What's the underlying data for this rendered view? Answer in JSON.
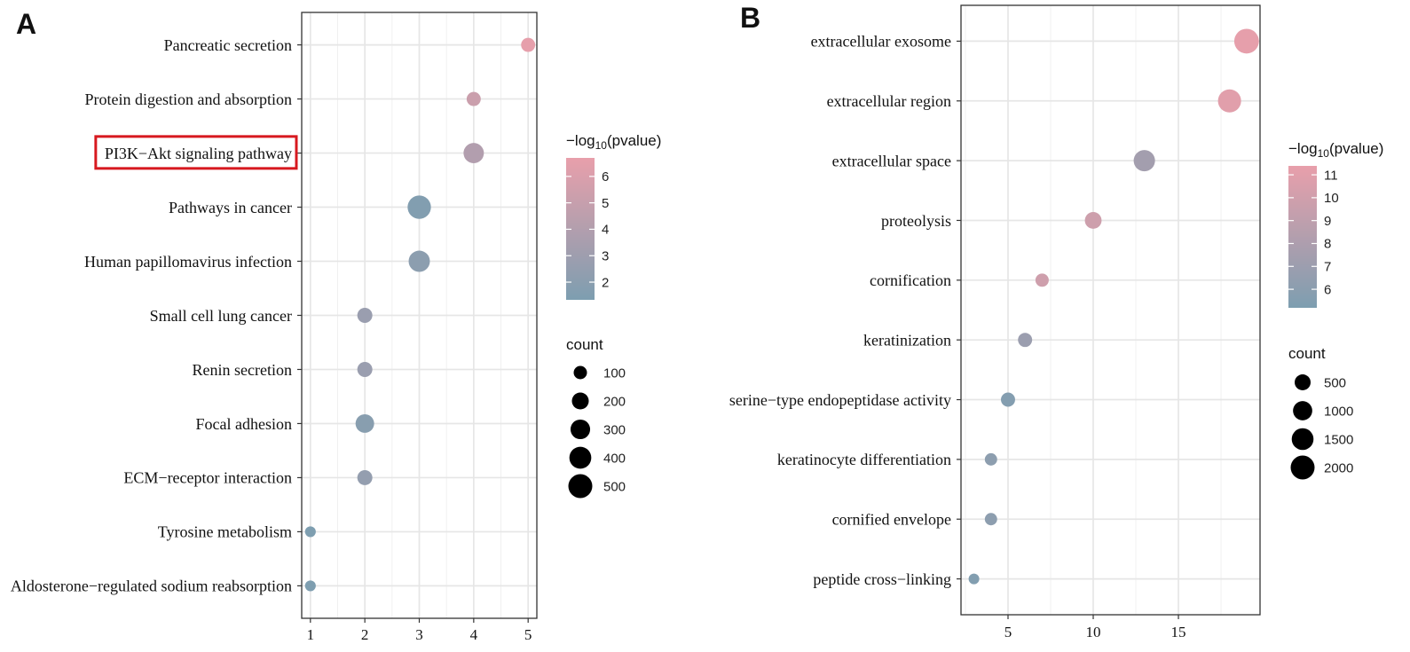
{
  "chart_data": [
    {
      "panel": "A",
      "type": "scatter",
      "xlim": [
        0.84,
        5.16
      ],
      "xticks": [
        1,
        2,
        3,
        4,
        5
      ],
      "grid": true,
      "legend_position": "right",
      "categories": [
        "Pancreatic secretion",
        "Protein digestion and absorption",
        "PI3K−Akt signaling pathway",
        "Pathways in cancer",
        "Human papillomavirus infection",
        "Small cell lung cancer",
        "Renin secretion",
        "Focal adhesion",
        "ECM−receptor interaction",
        "Tyrosine metabolism",
        "Aldosterone−regulated sodium reabsorption"
      ],
      "x": [
        5,
        4,
        4,
        3,
        3,
        2,
        2,
        2,
        2,
        1,
        1
      ],
      "neg_log10_pvalue": [
        6.6,
        5.2,
        4.0,
        1.6,
        2.1,
        2.8,
        2.8,
        1.9,
        2.5,
        1.4,
        1.4
      ],
      "count": [
        120,
        120,
        330,
        470,
        370,
        145,
        145,
        260,
        145,
        50,
        50
      ],
      "highlighted_index": 2,
      "highlight_color": "#d7191f",
      "color_legend": {
        "title": {
          "main": "−log",
          "sub": "10",
          "tail": "(pvalue)"
        },
        "range": [
          1.33,
          6.7
        ],
        "ticks": [
          6,
          5,
          4,
          3,
          2
        ],
        "low_color": "#7d9eb0",
        "high_color": "#e89fab"
      },
      "size_legend": {
        "title": "count",
        "values": [
          100,
          200,
          300,
          400,
          500
        ],
        "color": "#000000"
      }
    },
    {
      "panel": "B",
      "type": "scatter",
      "xlim": [
        2.24,
        19.79
      ],
      "xticks": [
        5,
        10,
        15
      ],
      "grid": true,
      "legend_position": "right",
      "categories": [
        "extracellular exosome",
        "extracellular region",
        "extracellular space",
        "proteolysis",
        "cornification",
        "keratinization",
        "serine−type endopeptidase activity",
        "keratinocyte differentiation",
        "cornified envelope",
        "peptide cross−linking"
      ],
      "x": [
        19,
        18,
        13,
        10,
        7,
        6,
        5,
        4,
        4,
        3
      ],
      "neg_log10_pvalue": [
        11.3,
        11.0,
        7.4,
        9.8,
        9.9,
        6.9,
        5.6,
        6.1,
        6.1,
        5.5
      ],
      "count": [
        2200,
        1800,
        1400,
        600,
        220,
        300,
        300,
        150,
        150,
        55
      ],
      "color_legend": {
        "title": {
          "main": "−log",
          "sub": "10",
          "tail": "(pvalue)"
        },
        "range": [
          5.19,
          11.39
        ],
        "ticks": [
          11,
          10,
          9,
          8,
          7,
          6
        ],
        "low_color": "#7d9eb0",
        "high_color": "#e89fab"
      },
      "size_legend": {
        "title": "count",
        "values": [
          500,
          1000,
          1500,
          2000
        ],
        "color": "#000000"
      }
    }
  ]
}
